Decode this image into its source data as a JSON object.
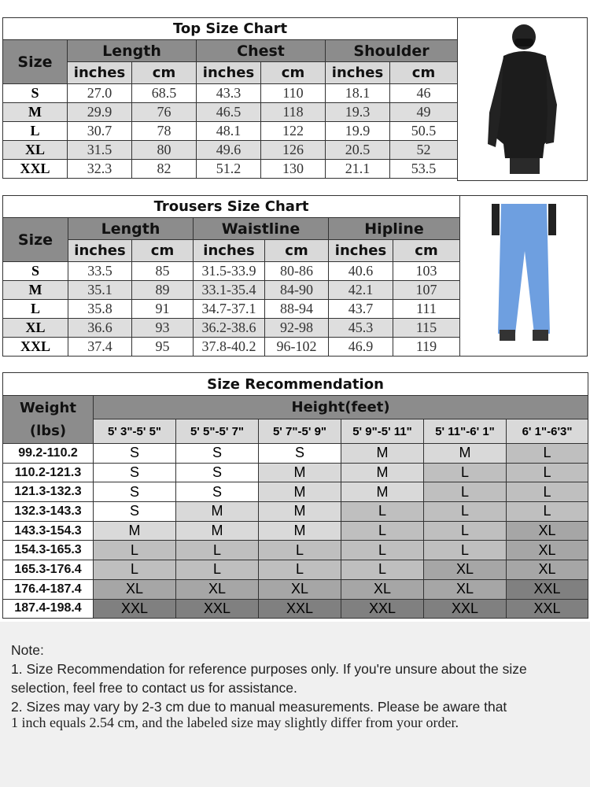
{
  "top_chart": {
    "title": "Top Size Chart",
    "size_label": "Size",
    "groups": [
      "Length",
      "Chest",
      "Shoulder"
    ],
    "units": [
      "inches",
      "cm",
      "inches",
      "cm",
      "inches",
      "cm"
    ],
    "rows": [
      [
        "S",
        "27.0",
        "68.5",
        "43.3",
        "110",
        "18.1",
        "46"
      ],
      [
        "M",
        "29.9",
        "76",
        "46.5",
        "118",
        "19.3",
        "49"
      ],
      [
        "L",
        "30.7",
        "78",
        "48.1",
        "122",
        "19.9",
        "50.5"
      ],
      [
        "XL",
        "31.5",
        "80",
        "49.6",
        "126",
        "20.5",
        "52"
      ],
      [
        "XXL",
        "32.3",
        "82",
        "51.2",
        "130",
        "21.1",
        "53.5"
      ]
    ],
    "image": "black-ski-jacket-photo"
  },
  "trousers_chart": {
    "title": "Trousers  Size  Chart",
    "size_label": "Size",
    "groups": [
      "Length",
      "Waistline",
      "Hipline"
    ],
    "units": [
      "inches",
      "cm",
      "inches",
      "cm",
      "inches",
      "cm"
    ],
    "rows": [
      [
        "S",
        "33.5",
        "85",
        "31.5-33.9",
        "80-86",
        "40.6",
        "103"
      ],
      [
        "M",
        "35.1",
        "89",
        "33.1-35.4",
        "84-90",
        "42.1",
        "107"
      ],
      [
        "L",
        "35.8",
        "91",
        "34.7-37.1",
        "88-94",
        "43.7",
        "111"
      ],
      [
        "XL",
        "36.6",
        "93",
        "36.2-38.6",
        "92-98",
        "45.3",
        "115"
      ],
      [
        "XXL",
        "37.4",
        "95",
        "37.8-40.2",
        "96-102",
        "46.9",
        "119"
      ]
    ],
    "image": "blue-ski-trousers-photo"
  },
  "recommendation": {
    "title": "Size Recommendation",
    "weight_label": "Weight",
    "weight_unit": "(lbs)",
    "height_label": "Height(feet)",
    "heights": [
      "5' 3\"-5' 5\"",
      "5' 5\"-5' 7\"",
      "5' 7\"-5' 9\"",
      "5' 9\"-5' 11\"",
      "5' 11\"-6' 1\"",
      "6' 1\"-6'3\""
    ],
    "rows": [
      [
        "99.2-110.2",
        "S",
        "S",
        "S",
        "M",
        "M",
        "L"
      ],
      [
        "110.2-121.3",
        "S",
        "S",
        "M",
        "M",
        "L",
        "L"
      ],
      [
        "121.3-132.3",
        "S",
        "S",
        "M",
        "M",
        "L",
        "L"
      ],
      [
        "132.3-143.3",
        "S",
        "M",
        "M",
        "L",
        "L",
        "L"
      ],
      [
        "143.3-154.3",
        "M",
        "M",
        "M",
        "L",
        "L",
        "XL"
      ],
      [
        "154.3-165.3",
        "L",
        "L",
        "L",
        "L",
        "L",
        "XL"
      ],
      [
        "165.3-176.4",
        "L",
        "L",
        "L",
        "L",
        "XL",
        "XL"
      ],
      [
        "176.4-187.4",
        "XL",
        "XL",
        "XL",
        "XL",
        "XL",
        "XXL"
      ],
      [
        "187.4-198.4",
        "XXL",
        "XXL",
        "XXL",
        "XXL",
        "XXL",
        "XXL"
      ]
    ],
    "size_colors": {
      "S": "#ffffff",
      "M": "#d9d9d9",
      "L": "#bfbfbf",
      "XL": "#a6a6a6",
      "XXL": "#808080"
    }
  },
  "notes": {
    "heading": "Note:",
    "line1": "1. Size Recommendation for reference purposes only. If you're unsure about the size selection, feel free to contact us for assistance.",
    "line2a": "2. Sizes may vary by 2-3 cm due to manual measurements. Please be aware that",
    "line2b": "1 inch equals 2.54 cm, and the labeled size may slightly differ from your order."
  }
}
